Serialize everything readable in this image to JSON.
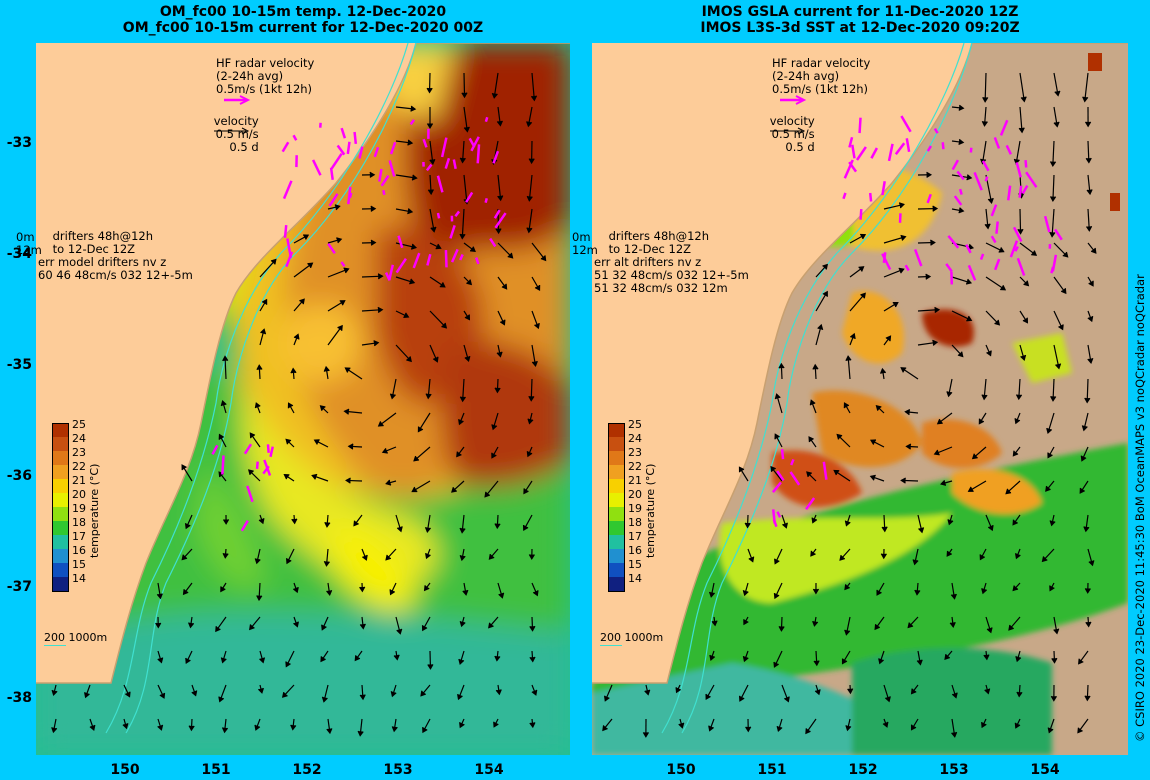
{
  "titles": {
    "left_line1": "OM_fc00 10-15m temp. 12-Dec-2020",
    "left_line2": "OM_fc00 10-15m current for 12-Dec-2020 00Z",
    "right_line1": "IMOS GSLA current for 11-Dec-2020 12Z",
    "right_line2": "IMOS L3S-3d SST at 12-Dec-2020 09:20Z"
  },
  "axes": {
    "lat_labels": [
      "-33",
      "-34",
      "-35",
      "-36",
      "-37",
      "-38"
    ],
    "lon_labels": [
      "150",
      "151",
      "152",
      "153",
      "154"
    ]
  },
  "legend": {
    "hf_line1": "HF radar velocity",
    "hf_line2": "(2-24h avg)",
    "hf_line3": "0.5m/s (1kt 12h)",
    "vel_line1": "velocity",
    "vel_line2": "0.5 m/s",
    "vel_line3": "0.5 d",
    "drift_0m": "0m",
    "drift_12m": "12m",
    "drift_line1": "drifters 48h@12h",
    "drift_line2": "to 12-Dec 12Z",
    "left_err1": "err model drifters nv z",
    "left_err2": "60 46 48cm/s 032 12+-5m",
    "right_err1": "err alt drifters nv z",
    "right_err2": "51 32 48cm/s 032 12+-5m",
    "right_err3": "51 32 48cm/s 032 12m",
    "depth_scale": "200  1000m"
  },
  "colorbar": {
    "title": "temperature (°C)",
    "ticks": [
      "25",
      "24",
      "23",
      "22",
      "21",
      "20",
      "19",
      "18",
      "17",
      "16",
      "15",
      "14"
    ],
    "colors": [
      "#b03000",
      "#c85010",
      "#e07818",
      "#f0a020",
      "#f8d000",
      "#e8f000",
      "#90e010",
      "#30c830",
      "#20c0a0",
      "#2090d0",
      "#1050c0",
      "#102080"
    ]
  },
  "credit": "© CSIRO 2020   23-Dec-2020 11:45:30 BoM OceanMAPS v3 noQCradar noQCradar"
}
